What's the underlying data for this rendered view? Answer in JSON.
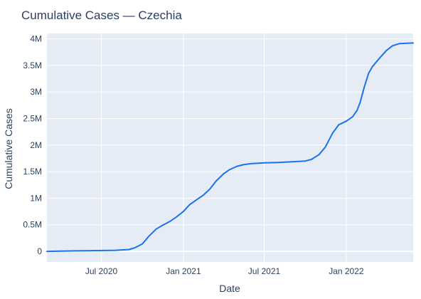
{
  "chart_data": {
    "type": "line",
    "title": "Cumulative Cases — Czechia",
    "xlabel": "Date",
    "ylabel": "Cumulative Cases",
    "grid": true,
    "legend": "none",
    "colors": {
      "line": "#1a73e8",
      "plot_bg": "#e5ecf6",
      "grid": "#ffffff",
      "text": "#2a3f5f"
    },
    "xlim": [
      "2020-03-01",
      "2022-05-31"
    ],
    "ylim": [
      -200000,
      4100000
    ],
    "x_ticks": [
      {
        "date": "2020-07-01",
        "label": "Jul 2020"
      },
      {
        "date": "2021-01-01",
        "label": "Jan 2021"
      },
      {
        "date": "2021-07-01",
        "label": "Jul 2021"
      },
      {
        "date": "2022-01-01",
        "label": "Jan 2022"
      }
    ],
    "y_ticks": [
      {
        "value": 0,
        "label": "0"
      },
      {
        "value": 500000,
        "label": "0.5M"
      },
      {
        "value": 1000000,
        "label": "1M"
      },
      {
        "value": 1500000,
        "label": "1.5M"
      },
      {
        "value": 2000000,
        "label": "2M"
      },
      {
        "value": 2500000,
        "label": "2.5M"
      },
      {
        "value": 3000000,
        "label": "3M"
      },
      {
        "value": 3500000,
        "label": "3.5M"
      },
      {
        "value": 4000000,
        "label": "4M"
      }
    ],
    "series": [
      {
        "x": [
          "2020-03-01",
          "2020-05-01",
          "2020-08-01",
          "2020-09-01",
          "2020-09-15",
          "2020-10-01",
          "2020-10-15",
          "2020-11-01",
          "2020-11-15",
          "2020-12-01",
          "2020-12-15",
          "2021-01-01",
          "2021-01-15",
          "2021-02-01",
          "2021-02-15",
          "2021-03-01",
          "2021-03-15",
          "2021-04-01",
          "2021-04-15",
          "2021-05-01",
          "2021-05-15",
          "2021-06-01",
          "2021-07-01",
          "2021-08-01",
          "2021-09-01",
          "2021-10-01",
          "2021-10-15",
          "2021-11-01",
          "2021-11-15",
          "2021-12-01",
          "2021-12-15",
          "2022-01-01",
          "2022-01-15",
          "2022-01-25",
          "2022-02-01",
          "2022-02-10",
          "2022-02-20",
          "2022-03-01",
          "2022-03-15",
          "2022-04-01",
          "2022-04-15",
          "2022-05-01",
          "2022-05-31"
        ],
        "y": [
          0,
          9000,
          20000,
          35000,
          70000,
          140000,
          280000,
          420000,
          490000,
          560000,
          640000,
          750000,
          880000,
          980000,
          1060000,
          1170000,
          1320000,
          1460000,
          1540000,
          1600000,
          1630000,
          1650000,
          1665000,
          1673000,
          1685000,
          1700000,
          1730000,
          1820000,
          1960000,
          2220000,
          2380000,
          2450000,
          2530000,
          2650000,
          2800000,
          3080000,
          3350000,
          3480000,
          3620000,
          3780000,
          3870000,
          3910000,
          3920000
        ]
      }
    ]
  }
}
